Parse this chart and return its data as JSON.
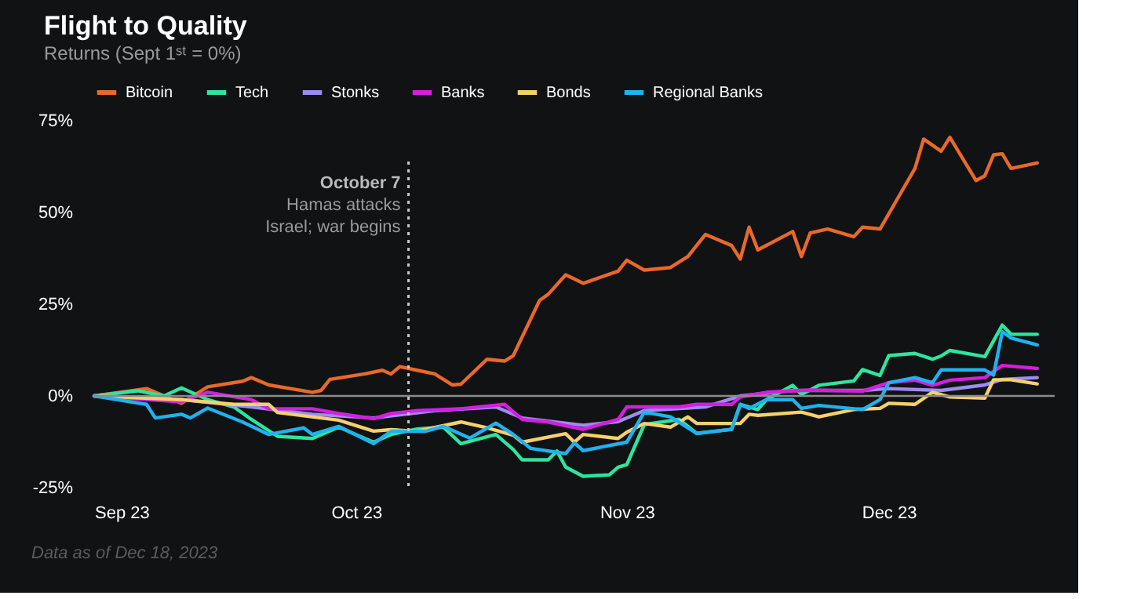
{
  "chart_data": {
    "type": "line",
    "title": "Flight to Quality",
    "subtitle": "Returns (Sept 1ˢᵗ = 0%)",
    "xlim": [
      "2023-09-01",
      "2023-12-20"
    ],
    "xticks": [
      {
        "value": "2023-09-01",
        "label": "Sep 23"
      },
      {
        "value": "2023-10-01",
        "label": "Oct 23"
      },
      {
        "value": "2023-11-01",
        "label": "Nov 23"
      },
      {
        "value": "2023-12-01",
        "label": "Dec 23"
      }
    ],
    "ylim": [
      -25,
      75
    ],
    "yticks": [
      {
        "value": -25,
        "label": "-25%"
      },
      {
        "value": 0,
        "label": "0%"
      },
      {
        "value": 25,
        "label": "25%"
      },
      {
        "value": 50,
        "label": "50%"
      },
      {
        "value": 75,
        "label": "75%"
      }
    ],
    "grid": false,
    "legend": "top",
    "marker": "none",
    "line_style": "solid",
    "series": [
      {
        "name": "Bitcoin",
        "color": "#e8692a",
        "x": [
          "2023-09-01",
          "2023-09-07",
          "2023-09-11",
          "2023-09-14",
          "2023-09-18",
          "2023-09-19",
          "2023-09-21",
          "2023-09-26",
          "2023-09-27",
          "2023-09-28",
          "2023-10-02",
          "2023-10-04",
          "2023-10-05",
          "2023-10-06",
          "2023-10-08",
          "2023-10-10",
          "2023-10-12",
          "2023-10-13",
          "2023-10-16",
          "2023-10-18",
          "2023-10-19",
          "2023-10-22",
          "2023-10-23",
          "2023-10-25",
          "2023-10-27",
          "2023-10-31",
          "2023-11-01",
          "2023-11-03",
          "2023-11-06",
          "2023-11-08",
          "2023-11-10",
          "2023-11-13",
          "2023-11-14",
          "2023-11-15",
          "2023-11-16",
          "2023-11-20",
          "2023-11-21",
          "2023-11-22",
          "2023-11-24",
          "2023-11-27",
          "2023-11-28",
          "2023-11-30",
          "2023-12-04",
          "2023-12-05",
          "2023-12-07",
          "2023-12-08",
          "2023-12-11",
          "2023-12-12",
          "2023-12-13",
          "2023-12-14",
          "2023-12-15",
          "2023-12-18"
        ],
        "values": [
          0,
          2,
          -2,
          2.5,
          4,
          5,
          3,
          1,
          1.5,
          4.5,
          6,
          7,
          6,
          8,
          7,
          6,
          3,
          3.2,
          10,
          9.5,
          11,
          26,
          27.7,
          33,
          30.7,
          34,
          37,
          34.3,
          35,
          38,
          44,
          41,
          37.3,
          46,
          39.8,
          44.8,
          38,
          44.4,
          45.5,
          43.4,
          46,
          45.5,
          62,
          70,
          66.7,
          70.5,
          58.7,
          60,
          65.7,
          66,
          62,
          63.5
        ]
      },
      {
        "name": "Tech",
        "color": "#2ee59d",
        "x": [
          "2023-09-01",
          "2023-09-06",
          "2023-09-09",
          "2023-09-11",
          "2023-09-14",
          "2023-09-17",
          "2023-09-19",
          "2023-09-22",
          "2023-09-26",
          "2023-09-29",
          "2023-10-03",
          "2023-10-05",
          "2023-10-08",
          "2023-10-11",
          "2023-10-13",
          "2023-10-17",
          "2023-10-19",
          "2023-10-20",
          "2023-10-23",
          "2023-10-24",
          "2023-10-25",
          "2023-10-27",
          "2023-10-30",
          "2023-10-31",
          "2023-11-01",
          "2023-11-03",
          "2023-11-07",
          "2023-11-09",
          "2023-11-13",
          "2023-11-14",
          "2023-11-16",
          "2023-11-17",
          "2023-11-20",
          "2023-11-21",
          "2023-11-23",
          "2023-11-27",
          "2023-11-28",
          "2023-11-30",
          "2023-12-01",
          "2023-12-04",
          "2023-12-06",
          "2023-12-07",
          "2023-12-08",
          "2023-12-12",
          "2023-12-14",
          "2023-12-15",
          "2023-12-18"
        ],
        "values": [
          0,
          1.4,
          0,
          2.2,
          -1,
          -3,
          -6.4,
          -11,
          -11.6,
          -8.5,
          -12.6,
          -10.5,
          -9,
          -8.5,
          -13,
          -10.5,
          -14.6,
          -17.4,
          -17.4,
          -15,
          -19.4,
          -21.9,
          -21.5,
          -19.4,
          -18.7,
          -7.8,
          -6.4,
          -10.2,
          -9.1,
          -2.3,
          -3.7,
          -1,
          2.9,
          0.4,
          2.9,
          4.1,
          7.2,
          5.6,
          11,
          11.6,
          10,
          10.9,
          12.4,
          10.7,
          19.3,
          16.8,
          16.8
        ]
      },
      {
        "name": "Stonks",
        "color": "#9b8cf2",
        "x": [
          "2023-09-01",
          "2023-09-11",
          "2023-09-19",
          "2023-09-26",
          "2023-10-03",
          "2023-10-10",
          "2023-10-17",
          "2023-10-20",
          "2023-10-27",
          "2023-10-31",
          "2023-11-03",
          "2023-11-10",
          "2023-11-14",
          "2023-11-20",
          "2023-11-28",
          "2023-12-01",
          "2023-12-07",
          "2023-12-12",
          "2023-12-14",
          "2023-12-18"
        ],
        "values": [
          0,
          -1,
          -3,
          -5,
          -6,
          -4,
          -3,
          -6,
          -8,
          -7,
          -4,
          -3,
          0,
          1.5,
          1.5,
          2,
          1.5,
          3,
          4.5,
          5
        ]
      },
      {
        "name": "Banks",
        "color": "#d41fe0",
        "x": [
          "2023-09-01",
          "2023-09-11",
          "2023-09-14",
          "2023-09-19",
          "2023-09-21",
          "2023-09-26",
          "2023-09-29",
          "2023-10-03",
          "2023-10-05",
          "2023-10-08",
          "2023-10-13",
          "2023-10-18",
          "2023-10-20",
          "2023-10-23",
          "2023-10-27",
          "2023-10-31",
          "2023-11-01",
          "2023-11-07",
          "2023-11-09",
          "2023-11-13",
          "2023-11-14",
          "2023-11-17",
          "2023-11-22",
          "2023-11-28",
          "2023-12-01",
          "2023-12-04",
          "2023-12-06",
          "2023-12-08",
          "2023-12-12",
          "2023-12-14",
          "2023-12-18"
        ],
        "values": [
          0,
          -1.6,
          1,
          -1,
          -3.5,
          -3.5,
          -4.8,
          -6.2,
          -4.8,
          -4,
          -3.5,
          -2.3,
          -6.4,
          -7.1,
          -9.1,
          -6.4,
          -3,
          -3,
          -2.3,
          -2.3,
          -0.3,
          1,
          1.6,
          1.3,
          3.6,
          4.3,
          2.9,
          4.3,
          5,
          8.3,
          7.5
        ]
      },
      {
        "name": "Bonds",
        "color": "#f6d06b",
        "x": [
          "2023-09-01",
          "2023-09-11",
          "2023-09-17",
          "2023-09-21",
          "2023-09-22",
          "2023-09-29",
          "2023-10-03",
          "2023-10-05",
          "2023-10-08",
          "2023-10-13",
          "2023-10-16",
          "2023-10-19",
          "2023-10-20",
          "2023-10-25",
          "2023-10-26",
          "2023-10-27",
          "2023-10-31",
          "2023-11-01",
          "2023-11-03",
          "2023-11-06",
          "2023-11-08",
          "2023-11-09",
          "2023-11-14",
          "2023-11-15",
          "2023-11-16",
          "2023-11-21",
          "2023-11-23",
          "2023-11-27",
          "2023-11-30",
          "2023-12-01",
          "2023-12-04",
          "2023-12-06",
          "2023-12-08",
          "2023-12-12",
          "2023-12-13",
          "2023-12-15",
          "2023-12-18"
        ],
        "values": [
          0,
          -1,
          -2.3,
          -2.3,
          -4.5,
          -6.6,
          -9.6,
          -9.2,
          -9.6,
          -7.1,
          -8.7,
          -10.7,
          -12.6,
          -10.3,
          -12.6,
          -10.5,
          -11.6,
          -9.9,
          -7.5,
          -8.5,
          -5.7,
          -7.5,
          -7.5,
          -5,
          -5.3,
          -4.4,
          -5.7,
          -3.7,
          -3.4,
          -2,
          -2.3,
          1,
          -0.3,
          -0.6,
          4.4,
          4.4,
          3.3
        ]
      },
      {
        "name": "Regional Banks",
        "color": "#1fb2f0",
        "x": [
          "2023-09-01",
          "2023-09-07",
          "2023-09-08",
          "2023-09-11",
          "2023-09-12",
          "2023-09-14",
          "2023-09-18",
          "2023-09-21",
          "2023-09-25",
          "2023-09-26",
          "2023-09-29",
          "2023-10-03",
          "2023-10-05",
          "2023-10-09",
          "2023-10-11",
          "2023-10-14",
          "2023-10-17",
          "2023-10-19",
          "2023-10-21",
          "2023-10-25",
          "2023-10-26",
          "2023-10-27",
          "2023-11-01",
          "2023-11-03",
          "2023-11-06",
          "2023-11-09",
          "2023-11-13",
          "2023-11-14",
          "2023-11-15",
          "2023-11-17",
          "2023-11-20",
          "2023-11-21",
          "2023-11-23",
          "2023-11-28",
          "2023-11-30",
          "2023-12-01",
          "2023-12-04",
          "2023-12-06",
          "2023-12-07",
          "2023-12-12",
          "2023-12-13",
          "2023-12-14",
          "2023-12-15",
          "2023-12-18"
        ],
        "values": [
          0,
          -2.3,
          -6,
          -5,
          -6,
          -3.3,
          -7.1,
          -10.5,
          -8.7,
          -10.5,
          -8.3,
          -13,
          -9.6,
          -9.6,
          -8.3,
          -11.5,
          -7.4,
          -10.5,
          -14.3,
          -15.7,
          -12.8,
          -14.9,
          -12.6,
          -4.4,
          -5.7,
          -10.2,
          -9.1,
          -2.3,
          -3.4,
          -1,
          -1,
          -3.4,
          -2.6,
          -3.7,
          -1,
          3.6,
          5,
          3.6,
          7.1,
          7.1,
          5.7,
          17.5,
          15.8,
          13.9
        ]
      }
    ],
    "ref_lines": [
      {
        "axis": "y",
        "value": 0,
        "color": "#8a8a8a",
        "line_style": "solid"
      },
      {
        "axis": "x",
        "value": "2023-10-07",
        "label": "October 7\nHamas attacks\nIsrael; war begins",
        "color": "#c8c8c8",
        "line_style": "dotted"
      }
    ],
    "annotations": [
      "Data as of Dec 18, 2023"
    ]
  }
}
